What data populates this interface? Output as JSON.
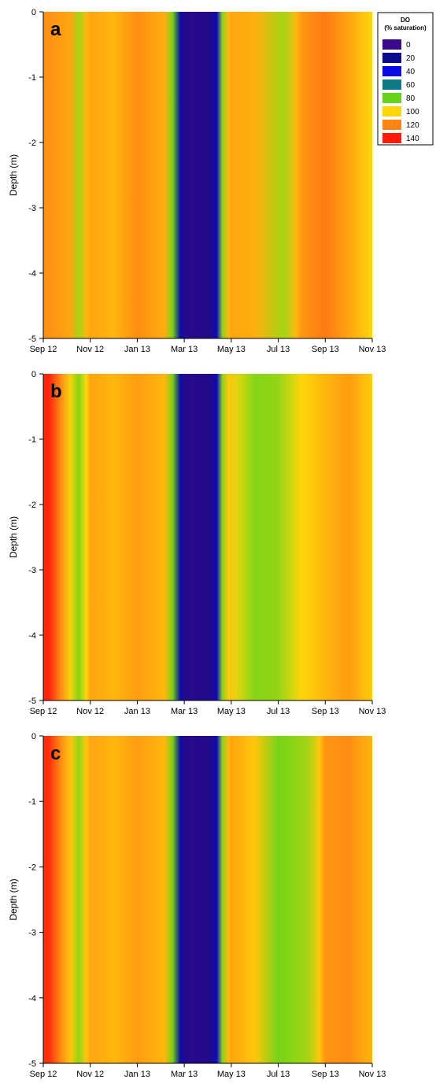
{
  "legend": {
    "title_line1": "DO",
    "title_line2": "(% saturation)",
    "entries": [
      {
        "label": "0",
        "color": "#3b0a8a"
      },
      {
        "label": "20",
        "color": "#0a0a8c"
      },
      {
        "label": "40",
        "color": "#0a0ae6"
      },
      {
        "label": "60",
        "color": "#0e7a86"
      },
      {
        "label": "80",
        "color": "#66d41a"
      },
      {
        "label": "100",
        "color": "#ffd60a"
      },
      {
        "label": "120",
        "color": "#ff8514"
      },
      {
        "label": "140",
        "color": "#ff1a0a"
      }
    ]
  },
  "chart_data": [
    {
      "type": "heatmap",
      "panel_label": "a",
      "ylabel": "Depth (m)",
      "xlabel": "",
      "x_ticks": [
        "Sep 12",
        "Nov 12",
        "Jan 13",
        "Mar 13",
        "May 13",
        "Jul 13",
        "Sep 13",
        "Nov 13"
      ],
      "y_ticks": [
        "0",
        "-1",
        "-2",
        "-3",
        "-4",
        "-5"
      ],
      "ylim": [
        -5,
        0
      ],
      "z_range": [
        0,
        140
      ],
      "profile": [
        {
          "x": "Sep 12",
          "do": 118
        },
        {
          "x": "Oct 12",
          "do": 112
        },
        {
          "x": "Oct 12",
          "do": 88
        },
        {
          "x": "Oct 12",
          "do": 108
        },
        {
          "x": "Nov 12",
          "do": 112
        },
        {
          "x": "Dec 12",
          "do": 108
        },
        {
          "x": "Jan 13",
          "do": 118
        },
        {
          "x": "Feb 13",
          "do": 110
        },
        {
          "x": "Feb 13",
          "do": 82
        },
        {
          "x": "Feb 13",
          "do": 28
        },
        {
          "x": "Mar 13",
          "do": 8
        },
        {
          "x": "Apr 13",
          "do": 10
        },
        {
          "x": "Apr 13",
          "do": 30
        },
        {
          "x": "Apr 13",
          "do": 85
        },
        {
          "x": "Apr 13",
          "do": 108
        },
        {
          "x": "May 13",
          "do": 112
        },
        {
          "x": "Jun 13",
          "do": 110
        },
        {
          "x": "Jul 13",
          "do": 88
        },
        {
          "x": "Jul 13",
          "do": 108
        },
        {
          "x": "Aug 13",
          "do": 116
        },
        {
          "x": "Sep 13",
          "do": 122
        },
        {
          "x": "Oct 13",
          "do": 112
        },
        {
          "x": "Nov 13",
          "do": 100
        }
      ]
    },
    {
      "type": "heatmap",
      "panel_label": "b",
      "ylabel": "Depth (m)",
      "xlabel": "",
      "x_ticks": [
        "Sep 12",
        "Nov 12",
        "Jan 13",
        "Mar 13",
        "May 13",
        "Jul 13",
        "Sep 13",
        "Nov 13"
      ],
      "y_ticks": [
        "0",
        "-1",
        "-2",
        "-3",
        "-4",
        "-5"
      ],
      "ylim": [
        -5,
        0
      ],
      "z_range": [
        0,
        140
      ],
      "profile": [
        {
          "x": "Sep 12",
          "do": 138
        },
        {
          "x": "Sep 12",
          "do": 118
        },
        {
          "x": "Oct 12",
          "do": 98
        },
        {
          "x": "Oct 12",
          "do": 84
        },
        {
          "x": "Oct 12",
          "do": 100
        },
        {
          "x": "Nov 12",
          "do": 112
        },
        {
          "x": "Dec 12",
          "do": 108
        },
        {
          "x": "Jan 13",
          "do": 114
        },
        {
          "x": "Feb 13",
          "do": 108
        },
        {
          "x": "Feb 13",
          "do": 82
        },
        {
          "x": "Feb 13",
          "do": 28
        },
        {
          "x": "Mar 13",
          "do": 8
        },
        {
          "x": "Apr 13",
          "do": 10
        },
        {
          "x": "Apr 13",
          "do": 30
        },
        {
          "x": "Apr 13",
          "do": 85
        },
        {
          "x": "Apr 13",
          "do": 104
        },
        {
          "x": "May 13",
          "do": 96
        },
        {
          "x": "May 13",
          "do": 88
        },
        {
          "x": "Jun 13",
          "do": 84
        },
        {
          "x": "Jul 13",
          "do": 86
        },
        {
          "x": "Aug 13",
          "do": 100
        },
        {
          "x": "Sep 13",
          "do": 108
        },
        {
          "x": "Oct 13",
          "do": 114
        },
        {
          "x": "Nov 13",
          "do": 102
        }
      ]
    },
    {
      "type": "heatmap",
      "panel_label": "c",
      "ylabel": "Depth (m)",
      "xlabel": "",
      "x_ticks": [
        "Sep 12",
        "Nov 12",
        "Jan 13",
        "Mar 13",
        "May 13",
        "Jul 13",
        "Sep 13",
        "Nov 13"
      ],
      "y_ticks": [
        "0",
        "-1",
        "-2",
        "-3",
        "-4",
        "-5"
      ],
      "ylim": [
        -5,
        0
      ],
      "z_range": [
        0,
        140
      ],
      "profile": [
        {
          "x": "Sep 12",
          "do": 136
        },
        {
          "x": "Sep 12",
          "do": 118
        },
        {
          "x": "Oct 12",
          "do": 104
        },
        {
          "x": "Oct 12",
          "do": 86
        },
        {
          "x": "Oct 12",
          "do": 104
        },
        {
          "x": "Nov 12",
          "do": 112
        },
        {
          "x": "Dec 12",
          "do": 108
        },
        {
          "x": "Jan 13",
          "do": 114
        },
        {
          "x": "Feb 13",
          "do": 108
        },
        {
          "x": "Feb 13",
          "do": 82
        },
        {
          "x": "Feb 13",
          "do": 28
        },
        {
          "x": "Mar 13",
          "do": 8
        },
        {
          "x": "Apr 13",
          "do": 10
        },
        {
          "x": "Apr 13",
          "do": 30
        },
        {
          "x": "Apr 13",
          "do": 85
        },
        {
          "x": "Apr 13",
          "do": 108
        },
        {
          "x": "May 13",
          "do": 112
        },
        {
          "x": "Jun 13",
          "do": 104
        },
        {
          "x": "Jul 13",
          "do": 82
        },
        {
          "x": "Aug 13",
          "do": 88
        },
        {
          "x": "Aug 13",
          "do": 104
        },
        {
          "x": "Sep 13",
          "do": 116
        },
        {
          "x": "Oct 13",
          "do": 118
        },
        {
          "x": "Nov 13",
          "do": 108
        }
      ]
    }
  ]
}
